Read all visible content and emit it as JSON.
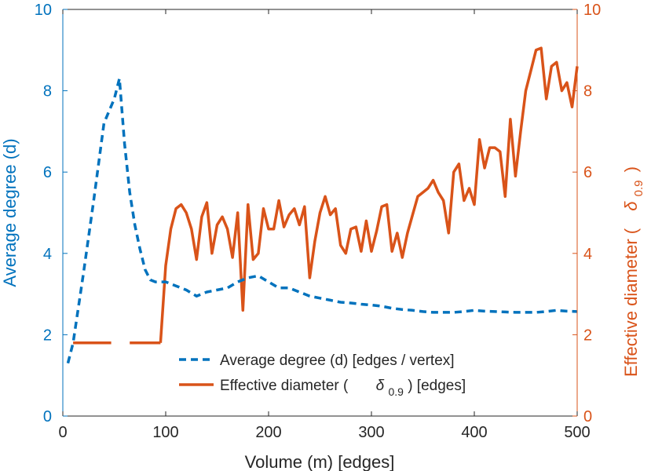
{
  "chart_data": {
    "type": "line",
    "title": "",
    "xlabel": "Volume (m) [edges]",
    "xlim": [
      0,
      500
    ],
    "x_ticks": [
      0,
      100,
      200,
      300,
      400,
      500
    ],
    "left_axis": {
      "ylabel": "Average degree (d)",
      "ylim": [
        0,
        10
      ],
      "ticks": [
        0,
        2,
        4,
        6,
        8,
        10
      ],
      "color": "#0072BD"
    },
    "right_axis": {
      "ylabel": "Effective diameter (",
      "ylabel_symbol": "δ",
      "ylabel_subscript": "0.9",
      "ylabel_suffix": ")",
      "ylim": [
        0,
        10
      ],
      "ticks": [
        0,
        2,
        4,
        6,
        8,
        10
      ],
      "color": "#D95319"
    },
    "legend": {
      "position": "bottom-center",
      "entries": [
        {
          "text": "Average degree (d) [edges / vertex]"
        },
        {
          "text_prefix": "Effective diameter (",
          "symbol": "δ",
          "subscript": "0.9",
          "text_suffix": ") [edges]"
        }
      ]
    },
    "series": [
      {
        "name": "Average degree (d) [edges / vertex]",
        "axis": "left",
        "style": "dashed",
        "color": "#0072BD",
        "x": [
          5,
          10,
          20,
          30,
          40,
          45,
          50,
          55,
          60,
          65,
          70,
          75,
          80,
          85,
          90,
          100,
          110,
          120,
          130,
          140,
          150,
          160,
          170,
          180,
          190,
          200,
          210,
          220,
          230,
          240,
          250,
          260,
          270,
          280,
          290,
          300,
          310,
          320,
          330,
          340,
          350,
          360,
          370,
          380,
          390,
          400,
          410,
          420,
          430,
          440,
          450,
          460,
          470,
          480,
          490,
          500
        ],
        "values": [
          1.3,
          1.8,
          3.5,
          5.3,
          7.2,
          7.5,
          7.8,
          8.3,
          6.7,
          5.5,
          4.7,
          4.1,
          3.6,
          3.35,
          3.3,
          3.3,
          3.2,
          3.1,
          2.95,
          3.05,
          3.1,
          3.15,
          3.3,
          3.4,
          3.45,
          3.3,
          3.15,
          3.15,
          3.05,
          2.95,
          2.9,
          2.85,
          2.8,
          2.78,
          2.75,
          2.73,
          2.7,
          2.65,
          2.62,
          2.6,
          2.57,
          2.55,
          2.55,
          2.55,
          2.57,
          2.6,
          2.58,
          2.57,
          2.56,
          2.55,
          2.55,
          2.55,
          2.57,
          2.6,
          2.58,
          2.57
        ]
      },
      {
        "name": "Effective diameter (δ0.9) [edges]",
        "axis": "right",
        "style": "solid",
        "color": "#D95319",
        "segments": [
          {
            "x": [
              10,
              20,
              30,
              40,
              47
            ],
            "values": [
              1.8,
              1.8,
              1.8,
              1.8,
              1.8
            ]
          },
          {
            "x": [
              65,
              75,
              85,
              95
            ],
            "values": [
              1.8,
              1.8,
              1.8,
              1.8
            ]
          },
          {
            "x": [
              95,
              100,
              105,
              110,
              115,
              120,
              125,
              130,
              135,
              140,
              145,
              150,
              155,
              160,
              165,
              170,
              175,
              180,
              185,
              190,
              195,
              200,
              205,
              210,
              215,
              220,
              225,
              230,
              235,
              240,
              245,
              250,
              255,
              260,
              265,
              270,
              275,
              280,
              285,
              290,
              295,
              300,
              305,
              310,
              315,
              320,
              325,
              330,
              335,
              340,
              345,
              350,
              355,
              360,
              365,
              370,
              375,
              380,
              385,
              390,
              395,
              400,
              405,
              410,
              415,
              420,
              425,
              430,
              435,
              440,
              445,
              450,
              455,
              460,
              465,
              470,
              475,
              480,
              485,
              490,
              495,
              500
            ],
            "values": [
              1.8,
              3.7,
              4.6,
              5.1,
              5.2,
              5.0,
              4.6,
              3.85,
              4.9,
              5.25,
              4.0,
              4.7,
              4.9,
              4.6,
              3.9,
              5.0,
              2.6,
              5.2,
              3.85,
              4.0,
              5.1,
              4.6,
              4.6,
              5.3,
              4.65,
              4.95,
              5.1,
              4.7,
              5.15,
              3.4,
              4.3,
              5.0,
              5.4,
              4.95,
              5.1,
              4.2,
              4.0,
              4.6,
              4.65,
              4.05,
              4.8,
              4.05,
              4.55,
              5.15,
              5.2,
              4.05,
              4.5,
              3.9,
              4.5,
              4.95,
              5.4,
              5.5,
              5.6,
              5.8,
              5.5,
              5.3,
              4.5,
              6.0,
              6.2,
              5.3,
              5.6,
              5.2,
              6.8,
              6.1,
              6.6,
              6.6,
              6.5,
              5.4,
              7.3,
              5.9,
              7.0,
              8.0,
              8.5,
              9.0,
              9.05,
              7.8,
              8.6,
              8.7,
              8.0,
              8.2,
              7.6,
              8.6
            ]
          }
        ]
      }
    ]
  }
}
